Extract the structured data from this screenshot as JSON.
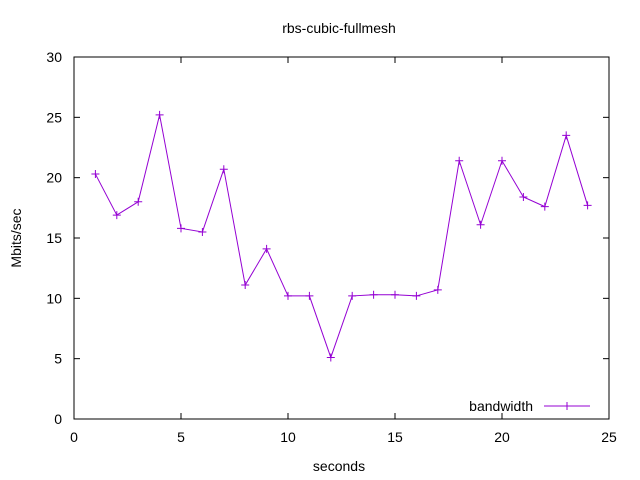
{
  "chart_data": {
    "type": "line",
    "title": "rbs-cubic-fullmesh",
    "xlabel": "seconds",
    "ylabel": "Mbits/sec",
    "xlim": [
      0,
      25
    ],
    "ylim": [
      0,
      30
    ],
    "xticks": [
      0,
      5,
      10,
      15,
      20,
      25
    ],
    "yticks": [
      0,
      5,
      10,
      15,
      20,
      25,
      30
    ],
    "grid": false,
    "legend_position": "bottom-right",
    "series": [
      {
        "name": "bandwidth",
        "color": "#9400d3",
        "marker": "plus",
        "x": [
          1,
          2,
          3,
          4,
          5,
          6,
          7,
          8,
          9,
          10,
          11,
          12,
          13,
          14,
          15,
          16,
          17,
          18,
          19,
          20,
          21,
          22,
          23,
          24
        ],
        "y": [
          20.3,
          16.9,
          18.0,
          25.2,
          15.8,
          15.5,
          20.7,
          11.1,
          14.1,
          10.2,
          10.2,
          5.1,
          10.2,
          10.3,
          10.3,
          10.2,
          10.7,
          21.4,
          16.1,
          21.4,
          18.4,
          17.6,
          23.5,
          17.7
        ]
      }
    ]
  }
}
